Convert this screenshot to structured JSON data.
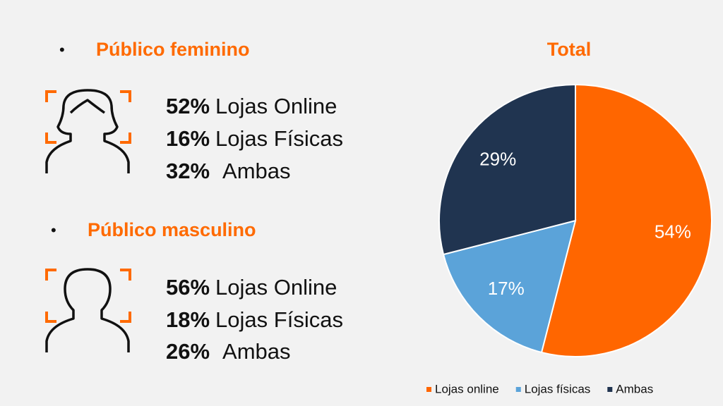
{
  "sections": [
    {
      "heading": "Público feminino",
      "items": [
        {
          "pct": "52%",
          "label": "Lojas Online"
        },
        {
          "pct": "16%",
          "label": "Lojas Físicas"
        },
        {
          "pct": "32%",
          "label": "Ambas"
        }
      ]
    },
    {
      "heading": "Público masculino",
      "items": [
        {
          "pct": "56%",
          "label": "Lojas Online"
        },
        {
          "pct": "18%",
          "label": "Lojas Físicas"
        },
        {
          "pct": "26%",
          "label": "Ambas"
        }
      ]
    }
  ],
  "chart_data": {
    "type": "pie",
    "title": "Total",
    "categories": [
      "Lojas online",
      "Lojas físicas",
      "Ambas"
    ],
    "values": [
      54,
      17,
      29
    ],
    "value_labels": [
      "54%",
      "17%",
      "29%"
    ],
    "colors": [
      "#ff6600",
      "#5ba3d9",
      "#203450"
    ],
    "legend": "bottom"
  }
}
